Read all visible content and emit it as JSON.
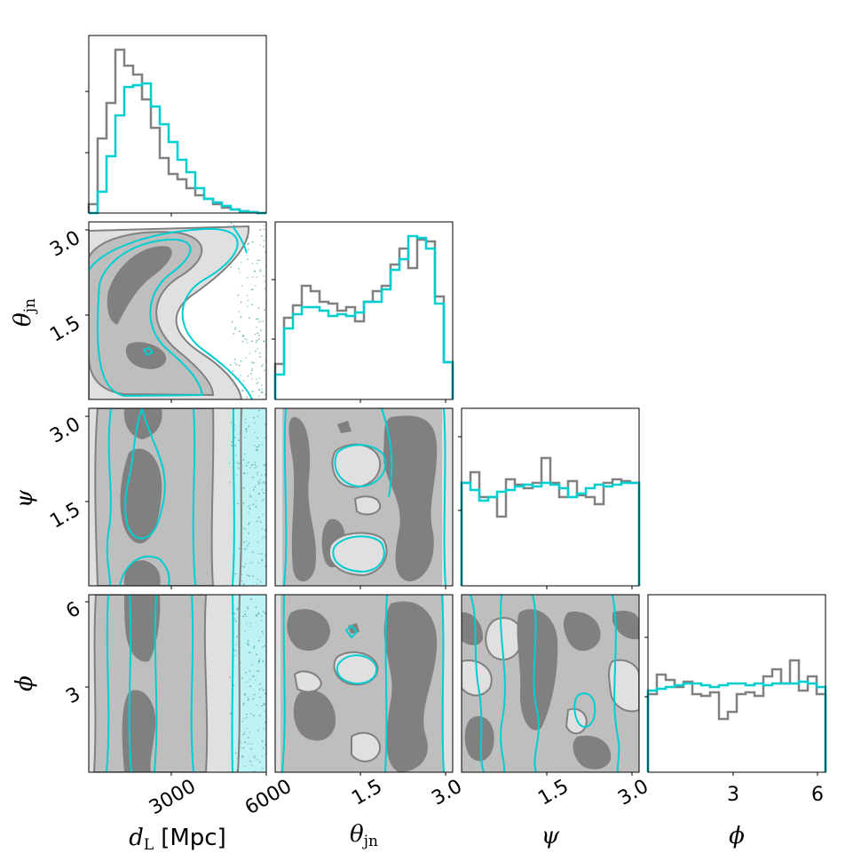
{
  "chart_data": {
    "type": "corner",
    "parameters": [
      {
        "key": "dL",
        "symbol": "d",
        "subscript": "L",
        "unit": "[Mpc]",
        "range": [
          0,
          6000
        ],
        "ticks": [
          3000,
          6000
        ],
        "tick_labels": [
          "3000",
          "6000"
        ]
      },
      {
        "key": "theta_jn",
        "symbol": "θ",
        "subscript": "jn",
        "unit": "",
        "range": [
          0,
          3.14
        ],
        "ticks": [
          1.5,
          3.0
        ],
        "tick_labels": [
          "1.5",
          "3.0"
        ]
      },
      {
        "key": "psi",
        "symbol": "ψ",
        "subscript": "",
        "unit": "",
        "range": [
          0,
          3.14
        ],
        "ticks": [
          1.5,
          3.0
        ],
        "tick_labels": [
          "1.5",
          "3.0"
        ]
      },
      {
        "key": "phi",
        "symbol": "ϕ",
        "subscript": "",
        "unit": "",
        "range": [
          0,
          6.28
        ],
        "ticks": [
          3,
          6
        ],
        "tick_labels": [
          "3",
          "6"
        ]
      }
    ],
    "series": [
      {
        "color": "#808080"
      },
      {
        "color": "#00ced1"
      }
    ],
    "histograms": {
      "dL": {
        "bins": 20,
        "gray": [
          0.05,
          0.42,
          0.62,
          0.92,
          0.83,
          0.78,
          0.64,
          0.48,
          0.31,
          0.22,
          0.19,
          0.14,
          0.1,
          0.08,
          0.05,
          0.03,
          0.02,
          0.01,
          0.005,
          0.0
        ],
        "teal": [
          0.0,
          0.12,
          0.32,
          0.55,
          0.71,
          0.72,
          0.73,
          0.6,
          0.5,
          0.4,
          0.3,
          0.23,
          0.14,
          0.08,
          0.06,
          0.04,
          0.02,
          0.01,
          0.005,
          0.0
        ]
      },
      "theta_jn": {
        "bins": 20,
        "gray": [
          0.2,
          0.46,
          0.53,
          0.64,
          0.61,
          0.55,
          0.54,
          0.5,
          0.52,
          0.44,
          0.55,
          0.61,
          0.64,
          0.76,
          0.85,
          0.74,
          0.9,
          0.89,
          0.58,
          0.21
        ],
        "teal": [
          0.14,
          0.4,
          0.48,
          0.52,
          0.52,
          0.5,
          0.47,
          0.48,
          0.47,
          0.49,
          0.55,
          0.55,
          0.62,
          0.73,
          0.79,
          0.92,
          0.91,
          0.85,
          0.54,
          0.21
        ]
      },
      "psi": {
        "bins": 20,
        "gray": [
          0.58,
          0.64,
          0.5,
          0.5,
          0.39,
          0.6,
          0.57,
          0.55,
          0.58,
          0.72,
          0.58,
          0.5,
          0.59,
          0.51,
          0.5,
          0.46,
          0.58,
          0.6,
          0.59,
          0.58
        ],
        "teal": [
          0.58,
          0.54,
          0.48,
          0.5,
          0.53,
          0.54,
          0.56,
          0.57,
          0.56,
          0.58,
          0.57,
          0.55,
          0.5,
          0.52,
          0.55,
          0.57,
          0.56,
          0.57,
          0.58,
          0.58
        ],
        "gray_alt": [
          0.7,
          0.62,
          0.56,
          0.58,
          0.52,
          0.6,
          0.58,
          0.58,
          0.6,
          0.72,
          0.6,
          0.52,
          0.6,
          0.52,
          0.58,
          0.54,
          0.6,
          0.6,
          0.6,
          0.58
        ]
      },
      "phi": {
        "bins": 20,
        "gray": [
          0.44,
          0.55,
          0.52,
          0.48,
          0.51,
          0.44,
          0.43,
          0.45,
          0.3,
          0.34,
          0.44,
          0.45,
          0.43,
          0.54,
          0.58,
          0.5,
          0.63,
          0.46,
          0.54,
          0.44
        ],
        "teal": [
          0.46,
          0.47,
          0.48,
          0.49,
          0.5,
          0.5,
          0.49,
          0.48,
          0.49,
          0.5,
          0.5,
          0.49,
          0.5,
          0.49,
          0.5,
          0.5,
          0.5,
          0.51,
          0.5,
          0.48
        ]
      }
    },
    "grid": false,
    "legend": "none"
  },
  "colors": {
    "gray_line": "#808080",
    "teal_line": "#00ced1",
    "fill_dark": "#808080",
    "fill_mid": "#bebebe",
    "fill_light": "#e0e0e0",
    "teal_fill": "#bff2f2"
  }
}
